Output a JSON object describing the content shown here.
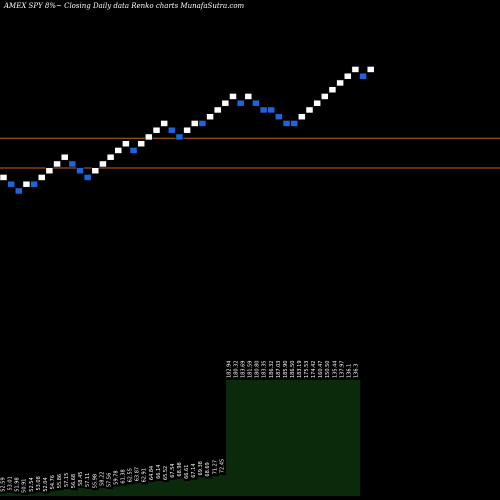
{
  "title": "AMEX  SPY 8%~  Closing Daily data  Renko  charts MunafaSutra.com",
  "chart_data": {
    "type": "renko",
    "price_range": [
      0,
      100
    ],
    "reference_lines": [
      {
        "value": 71,
        "color": "#c0651a"
      },
      {
        "value": 60,
        "color": "#c0651a"
      }
    ],
    "bricks": [
      {
        "value": 56.5,
        "dir": "up"
      },
      {
        "value": 54.0,
        "dir": "down"
      },
      {
        "value": 51.5,
        "dir": "down"
      },
      {
        "value": 54.0,
        "dir": "up"
      },
      {
        "value": 54.0,
        "dir": "down"
      },
      {
        "value": 56.5,
        "dir": "up"
      },
      {
        "value": 59.0,
        "dir": "up"
      },
      {
        "value": 61.5,
        "dir": "up"
      },
      {
        "value": 64.0,
        "dir": "up"
      },
      {
        "value": 61.5,
        "dir": "down"
      },
      {
        "value": 59.0,
        "dir": "down"
      },
      {
        "value": 56.5,
        "dir": "down"
      },
      {
        "value": 59.0,
        "dir": "up"
      },
      {
        "value": 61.5,
        "dir": "up"
      },
      {
        "value": 64.0,
        "dir": "up"
      },
      {
        "value": 66.5,
        "dir": "up"
      },
      {
        "value": 69.0,
        "dir": "up"
      },
      {
        "value": 66.5,
        "dir": "down"
      },
      {
        "value": 69.0,
        "dir": "up"
      },
      {
        "value": 71.5,
        "dir": "up"
      },
      {
        "value": 74.0,
        "dir": "up"
      },
      {
        "value": 76.5,
        "dir": "up"
      },
      {
        "value": 74.0,
        "dir": "down"
      },
      {
        "value": 71.5,
        "dir": "down"
      },
      {
        "value": 74.0,
        "dir": "up"
      },
      {
        "value": 76.5,
        "dir": "up"
      },
      {
        "value": 76.5,
        "dir": "down"
      },
      {
        "value": 79.0,
        "dir": "up"
      },
      {
        "value": 81.5,
        "dir": "up"
      },
      {
        "value": 84.0,
        "dir": "up"
      },
      {
        "value": 86.5,
        "dir": "up"
      },
      {
        "value": 84.0,
        "dir": "down"
      },
      {
        "value": 86.5,
        "dir": "up"
      },
      {
        "value": 84.0,
        "dir": "down"
      },
      {
        "value": 81.5,
        "dir": "down"
      },
      {
        "value": 81.5,
        "dir": "down"
      },
      {
        "value": 79.0,
        "dir": "down"
      },
      {
        "value": 76.5,
        "dir": "down"
      },
      {
        "value": 76.5,
        "dir": "down"
      },
      {
        "value": 79.0,
        "dir": "up"
      },
      {
        "value": 81.5,
        "dir": "up"
      },
      {
        "value": 84.0,
        "dir": "up"
      },
      {
        "value": 86.5,
        "dir": "up"
      },
      {
        "value": 89.0,
        "dir": "up"
      },
      {
        "value": 91.5,
        "dir": "up"
      },
      {
        "value": 94.0,
        "dir": "up"
      },
      {
        "value": 96.5,
        "dir": "up"
      },
      {
        "value": 94.0,
        "dir": "down"
      },
      {
        "value": 96.5,
        "dir": "up"
      }
    ],
    "volume": [
      {
        "value": 2,
        "label": "52.59"
      },
      {
        "value": 3,
        "label": "53.01"
      },
      {
        "value": 2,
        "label": "51.98"
      },
      {
        "value": 1,
        "label": "50.91"
      },
      {
        "value": 2,
        "label": "52.54"
      },
      {
        "value": 3,
        "label": "53.08"
      },
      {
        "value": 2,
        "label": "52.04"
      },
      {
        "value": 4,
        "label": "54.76"
      },
      {
        "value": 5,
        "label": "55.86"
      },
      {
        "value": 6,
        "label": "57.15"
      },
      {
        "value": 5,
        "label": "56.68"
      },
      {
        "value": 7,
        "label": "58.45"
      },
      {
        "value": 6,
        "label": "57.11"
      },
      {
        "value": 5,
        "label": "55.98"
      },
      {
        "value": 7,
        "label": "58.22"
      },
      {
        "value": 6,
        "label": "57.56"
      },
      {
        "value": 8,
        "label": "59.78"
      },
      {
        "value": 9,
        "label": "61.38"
      },
      {
        "value": 10,
        "label": "62.55"
      },
      {
        "value": 11,
        "label": "63.87"
      },
      {
        "value": 10,
        "label": "62.91"
      },
      {
        "value": 12,
        "label": "64.84"
      },
      {
        "value": 13,
        "label": "66.14"
      },
      {
        "value": 12,
        "label": "65.52"
      },
      {
        "value": 14,
        "label": "67.54"
      },
      {
        "value": 15,
        "label": "68.98"
      },
      {
        "value": 13,
        "label": "66.61"
      },
      {
        "value": 14,
        "label": "67.14"
      },
      {
        "value": 16,
        "label": "69.38"
      },
      {
        "value": 15,
        "label": "68.69"
      },
      {
        "value": 17,
        "label": "71.27"
      },
      {
        "value": 18,
        "label": "72.45"
      },
      {
        "value": 100,
        "label": "182.94"
      },
      {
        "value": 100,
        "label": "180.32"
      },
      {
        "value": 100,
        "label": "183.69"
      },
      {
        "value": 100,
        "label": "181.59"
      },
      {
        "value": 100,
        "label": "180.80"
      },
      {
        "value": 100,
        "label": "183.35"
      },
      {
        "value": 100,
        "label": "186.32"
      },
      {
        "value": 100,
        "label": "187.03"
      },
      {
        "value": 100,
        "label": "185.90"
      },
      {
        "value": 100,
        "label": "186.50"
      },
      {
        "value": 100,
        "label": "183.19"
      },
      {
        "value": 100,
        "label": "175.53"
      },
      {
        "value": 100,
        "label": "174.42"
      },
      {
        "value": 100,
        "label": "160.47"
      },
      {
        "value": 100,
        "label": "150.50"
      },
      {
        "value": 100,
        "label": "135.44"
      },
      {
        "value": 100,
        "label": "137.97"
      },
      {
        "value": 100,
        "label": "136.1"
      },
      {
        "value": 100,
        "label": "136.3"
      }
    ]
  }
}
